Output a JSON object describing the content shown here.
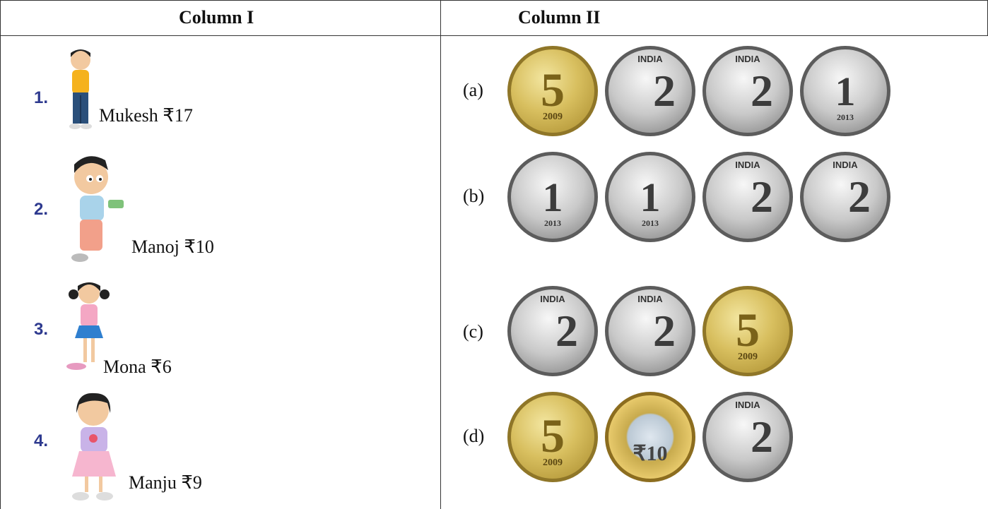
{
  "header": {
    "col1": "Column I",
    "col2": "Column II"
  },
  "rows": [
    {
      "num": "1.",
      "name": "Mukesh ₹17",
      "opt": "(a)",
      "coins": [
        {
          "type": "c5",
          "label": "5",
          "sub": "2009",
          "icon": "coin-5-rupees-icon"
        },
        {
          "type": "c2",
          "label": "2",
          "sub": "INDIA",
          "icon": "coin-2-rupees-icon"
        },
        {
          "type": "c2",
          "label": "2",
          "sub": "INDIA",
          "icon": "coin-2-rupees-icon"
        },
        {
          "type": "c1",
          "label": "1",
          "sub": "2013",
          "icon": "coin-1-rupee-icon"
        }
      ]
    },
    {
      "num": "2.",
      "name": "Manoj ₹10",
      "opt": "(b)",
      "coins": [
        {
          "type": "c1",
          "label": "1",
          "sub": "2013",
          "icon": "coin-1-rupee-icon"
        },
        {
          "type": "c1",
          "label": "1",
          "sub": "2013",
          "icon": "coin-1-rupee-icon"
        },
        {
          "type": "c2",
          "label": "2",
          "sub": "INDIA",
          "icon": "coin-2-rupees-icon"
        },
        {
          "type": "c2",
          "label": "2",
          "sub": "INDIA",
          "icon": "coin-2-rupees-icon"
        }
      ]
    },
    {
      "num": "3.",
      "name": "Mona ₹6",
      "opt": "(c)",
      "coins": [
        {
          "type": "c2",
          "label": "2",
          "sub": "INDIA",
          "icon": "coin-2-rupees-icon"
        },
        {
          "type": "c2",
          "label": "2",
          "sub": "INDIA",
          "icon": "coin-2-rupees-icon"
        },
        {
          "type": "c5",
          "label": "5",
          "sub": "2009",
          "icon": "coin-5-rupees-icon"
        }
      ]
    },
    {
      "num": "4.",
      "name": "Manju ₹9",
      "opt": "(d)",
      "coins": [
        {
          "type": "c5",
          "label": "5",
          "sub": "2009",
          "icon": "coin-5-rupees-icon"
        },
        {
          "type": "c10",
          "label": "₹10",
          "sub": "",
          "icon": "coin-10-rupees-icon"
        },
        {
          "type": "c2",
          "label": "2",
          "sub": "INDIA",
          "icon": "coin-2-rupees-icon"
        }
      ]
    }
  ]
}
